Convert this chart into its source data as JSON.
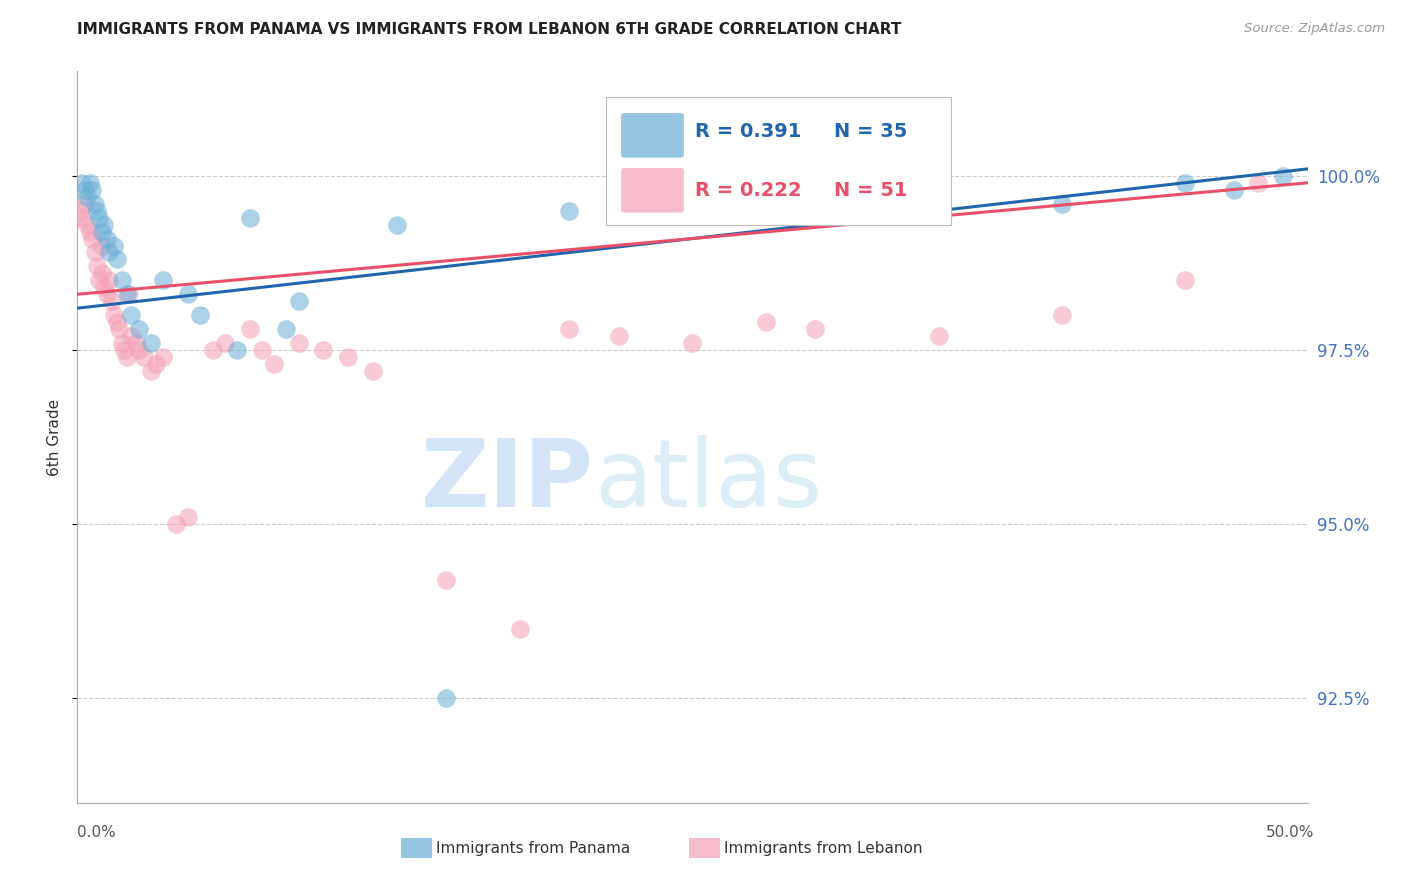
{
  "title": "IMMIGRANTS FROM PANAMA VS IMMIGRANTS FROM LEBANON 6TH GRADE CORRELATION CHART",
  "source": "Source: ZipAtlas.com",
  "ylabel": "6th Grade",
  "yaxis_ticks": [
    92.5,
    95.0,
    97.5,
    100.0
  ],
  "yaxis_labels": [
    "92.5%",
    "95.0%",
    "97.5%",
    "100.0%"
  ],
  "xlim": [
    0.0,
    50.0
  ],
  "ylim": [
    91.0,
    101.5
  ],
  "legend_blue_r": "R = 0.391",
  "legend_blue_n": "N = 35",
  "legend_pink_r": "R = 0.222",
  "legend_pink_n": "N = 51",
  "legend_label_blue": "Immigrants from Panama",
  "legend_label_pink": "Immigrants from Lebanon",
  "blue_color": "#6baed6",
  "pink_color": "#f4a0b5",
  "blue_line_color": "#2166ac",
  "pink_line_color": "#e8506a",
  "watermark_zip": "ZIP",
  "watermark_atlas": "atlas",
  "panama_x": [
    0.2,
    0.3,
    0.4,
    0.5,
    0.6,
    0.7,
    0.8,
    0.9,
    1.0,
    1.1,
    1.2,
    1.3,
    1.5,
    1.6,
    1.8,
    2.0,
    2.2,
    2.5,
    3.0,
    3.5,
    4.5,
    5.0,
    6.5,
    7.0,
    8.5,
    9.0,
    13.0,
    15.0,
    20.0,
    30.0,
    35.0,
    40.0,
    45.0,
    47.0,
    49.0
  ],
  "panama_y": [
    99.9,
    99.8,
    99.7,
    99.9,
    99.8,
    99.6,
    99.5,
    99.4,
    99.2,
    99.3,
    99.1,
    98.9,
    99.0,
    98.8,
    98.5,
    98.3,
    98.0,
    97.8,
    97.6,
    98.5,
    98.3,
    98.0,
    97.5,
    99.4,
    97.8,
    98.2,
    99.3,
    92.5,
    99.5,
    99.7,
    99.8,
    99.6,
    99.9,
    99.8,
    100.0
  ],
  "lebanon_x": [
    0.1,
    0.2,
    0.3,
    0.4,
    0.5,
    0.6,
    0.7,
    0.8,
    0.9,
    1.0,
    1.0,
    1.1,
    1.2,
    1.3,
    1.4,
    1.5,
    1.6,
    1.7,
    1.8,
    1.9,
    2.0,
    2.1,
    2.2,
    2.4,
    2.5,
    2.7,
    3.0,
    3.2,
    3.5,
    4.0,
    4.5,
    5.5,
    6.0,
    7.0,
    7.5,
    8.0,
    9.0,
    10.0,
    11.0,
    12.0,
    15.0,
    18.0,
    20.0,
    22.0,
    25.0,
    28.0,
    30.0,
    35.0,
    40.0,
    45.0,
    48.0
  ],
  "lebanon_y": [
    99.5,
    99.4,
    99.6,
    99.3,
    99.2,
    99.1,
    98.9,
    98.7,
    98.5,
    99.0,
    98.6,
    98.4,
    98.3,
    98.5,
    98.2,
    98.0,
    97.9,
    97.8,
    97.6,
    97.5,
    97.4,
    98.3,
    97.7,
    97.6,
    97.5,
    97.4,
    97.2,
    97.3,
    97.4,
    95.0,
    95.1,
    97.5,
    97.6,
    97.8,
    97.5,
    97.3,
    97.6,
    97.5,
    97.4,
    97.2,
    94.2,
    93.5,
    97.8,
    97.7,
    97.6,
    97.9,
    97.8,
    97.7,
    98.0,
    98.5,
    99.9
  ],
  "blue_line_x0": 0.0,
  "blue_line_x1": 50.0,
  "blue_line_y0": 98.1,
  "blue_line_y1": 100.1,
  "pink_line_x0": 0.0,
  "pink_line_x1": 50.0,
  "pink_line_y0": 98.3,
  "pink_line_y1": 99.9
}
